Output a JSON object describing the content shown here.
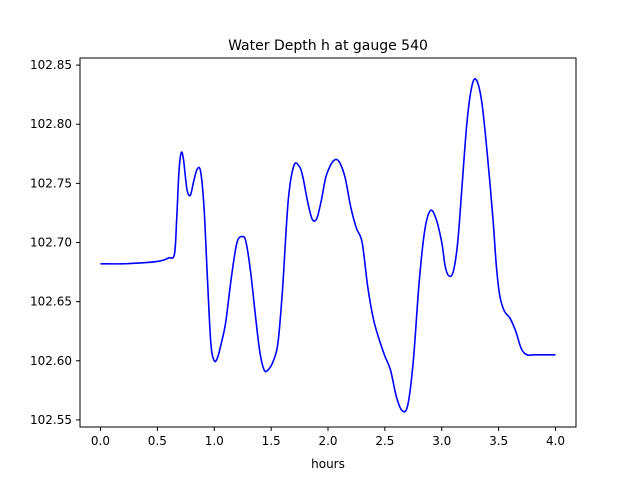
{
  "chart_data": {
    "type": "line",
    "title": "Water Depth h at gauge 540",
    "xlabel": "hours",
    "ylabel": "",
    "xlim": [
      -0.18,
      4.18
    ],
    "ylim": [
      102.544,
      102.856
    ],
    "xticks": [
      0.0,
      0.5,
      1.0,
      1.5,
      2.0,
      2.5,
      3.0,
      3.5,
      4.0
    ],
    "xtick_labels": [
      "0.0",
      "0.5",
      "1.0",
      "1.5",
      "2.0",
      "2.5",
      "3.0",
      "3.5",
      "4.0"
    ],
    "yticks": [
      102.55,
      102.6,
      102.65,
      102.7,
      102.75,
      102.8,
      102.85
    ],
    "ytick_labels": [
      "102.55",
      "102.60",
      "102.65",
      "102.70",
      "102.75",
      "102.80",
      "102.85"
    ],
    "grid": false,
    "series": [
      {
        "color": "#0000ff",
        "x": [
          0.0,
          0.2,
          0.4,
          0.5,
          0.55,
          0.6,
          0.65,
          0.67,
          0.69,
          0.71,
          0.73,
          0.76,
          0.79,
          0.82,
          0.85,
          0.88,
          0.91,
          0.94,
          0.97,
          1.0,
          1.03,
          1.06,
          1.1,
          1.15,
          1.2,
          1.25,
          1.28,
          1.32,
          1.36,
          1.4,
          1.44,
          1.48,
          1.52,
          1.56,
          1.6,
          1.65,
          1.7,
          1.75,
          1.78,
          1.82,
          1.86,
          1.9,
          1.94,
          1.98,
          2.02,
          2.06,
          2.1,
          2.15,
          2.2,
          2.25,
          2.3,
          2.35,
          2.4,
          2.45,
          2.5,
          2.55,
          2.6,
          2.65,
          2.7,
          2.75,
          2.8,
          2.85,
          2.9,
          2.95,
          3.0,
          3.03,
          3.06,
          3.1,
          3.14,
          3.18,
          3.22,
          3.26,
          3.3,
          3.35,
          3.4,
          3.45,
          3.48,
          3.51,
          3.55,
          3.6,
          3.65,
          3.7,
          3.75,
          3.8,
          3.85,
          3.9,
          3.95,
          4.0
        ],
        "y": [
          102.682,
          102.682,
          102.683,
          102.684,
          102.685,
          102.687,
          102.69,
          102.72,
          102.76,
          102.776,
          102.77,
          102.745,
          102.74,
          102.752,
          102.762,
          102.76,
          102.73,
          102.67,
          102.615,
          102.6,
          102.603,
          102.614,
          102.632,
          102.67,
          102.7,
          102.705,
          102.7,
          102.675,
          102.64,
          102.608,
          102.592,
          102.593,
          102.6,
          102.615,
          102.66,
          102.735,
          102.765,
          102.764,
          102.755,
          102.735,
          102.72,
          102.72,
          102.735,
          102.755,
          102.765,
          102.77,
          102.768,
          102.755,
          102.73,
          102.712,
          102.7,
          102.662,
          102.635,
          102.618,
          102.604,
          102.592,
          102.57,
          102.558,
          102.562,
          102.6,
          102.665,
          102.71,
          102.727,
          102.72,
          102.7,
          102.68,
          102.672,
          102.675,
          102.7,
          102.75,
          102.8,
          102.83,
          102.838,
          102.82,
          102.775,
          102.72,
          102.68,
          102.655,
          102.642,
          102.636,
          102.625,
          102.61,
          102.605,
          102.605,
          102.605,
          102.605,
          102.605,
          102.605
        ]
      }
    ]
  }
}
